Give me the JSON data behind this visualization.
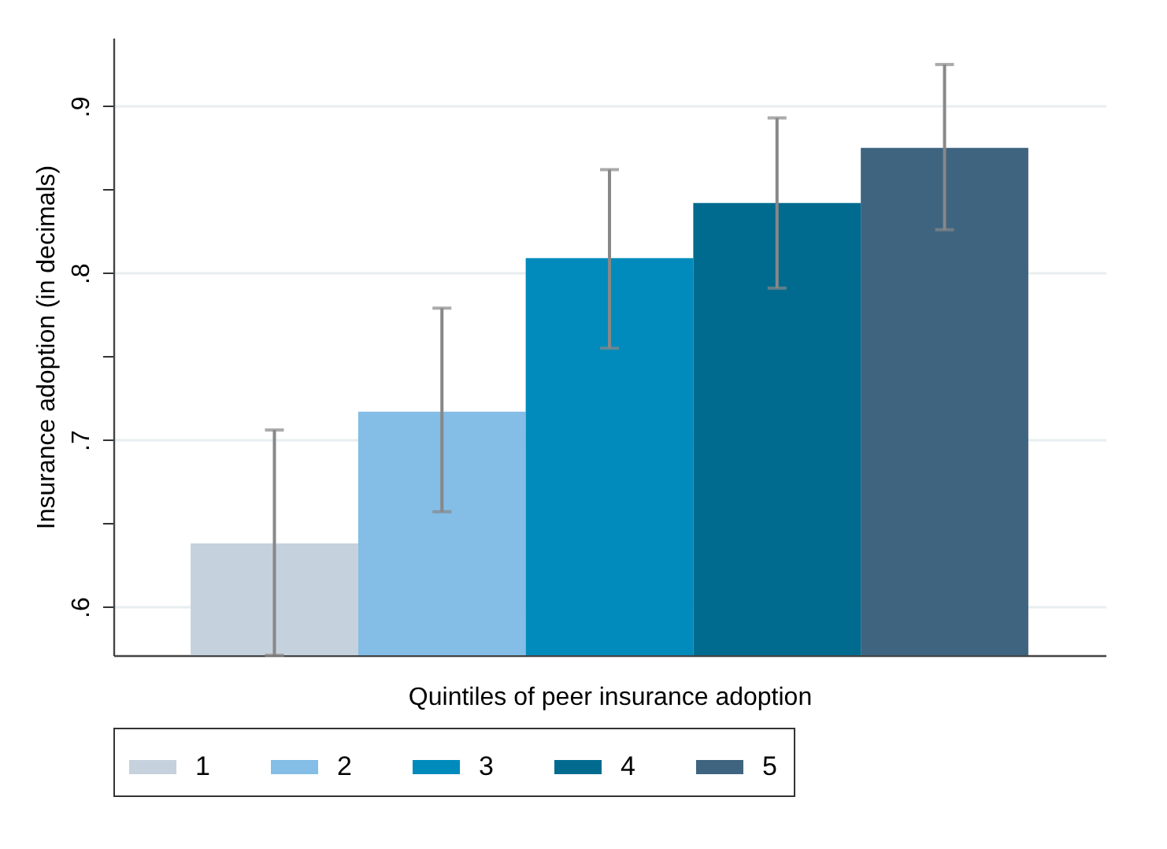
{
  "chart_data": {
    "type": "bar",
    "xlabel": "Quintiles of peer insurance adoption",
    "ylabel": "Insurance adoption (in decimals)",
    "categories": [
      null
    ],
    "series": [
      {
        "name": "1",
        "color": "#c5d1dd",
        "values": [
          0.638
        ],
        "errors": [
          [
            0.571,
            0.706
          ]
        ]
      },
      {
        "name": "2",
        "color": "#84bde6",
        "values": [
          0.717
        ],
        "errors": [
          [
            0.657,
            0.779
          ]
        ]
      },
      {
        "name": "3",
        "color": "#008bbc",
        "values": [
          0.809
        ],
        "errors": [
          [
            0.755,
            0.862
          ]
        ]
      },
      {
        "name": "4",
        "color": "#006b8f",
        "values": [
          0.842
        ],
        "errors": [
          [
            0.791,
            0.893
          ]
        ]
      },
      {
        "name": "5",
        "color": "#3e6480",
        "values": [
          0.875
        ],
        "errors": [
          [
            0.826,
            0.925
          ]
        ]
      }
    ],
    "ylim": [
      0.571,
      0.941
    ],
    "yticks": [
      {
        "value": 0.6,
        "label": ".6"
      },
      {
        "value": 0.65,
        "label": null
      },
      {
        "value": 0.7,
        "label": ".7"
      },
      {
        "value": 0.75,
        "label": null
      },
      {
        "value": 0.8,
        "label": ".8"
      },
      {
        "value": 0.85,
        "label": null
      },
      {
        "value": 0.9,
        "label": ".9"
      }
    ],
    "grid": "y",
    "legend": "bottom",
    "tick_labels": "y"
  }
}
